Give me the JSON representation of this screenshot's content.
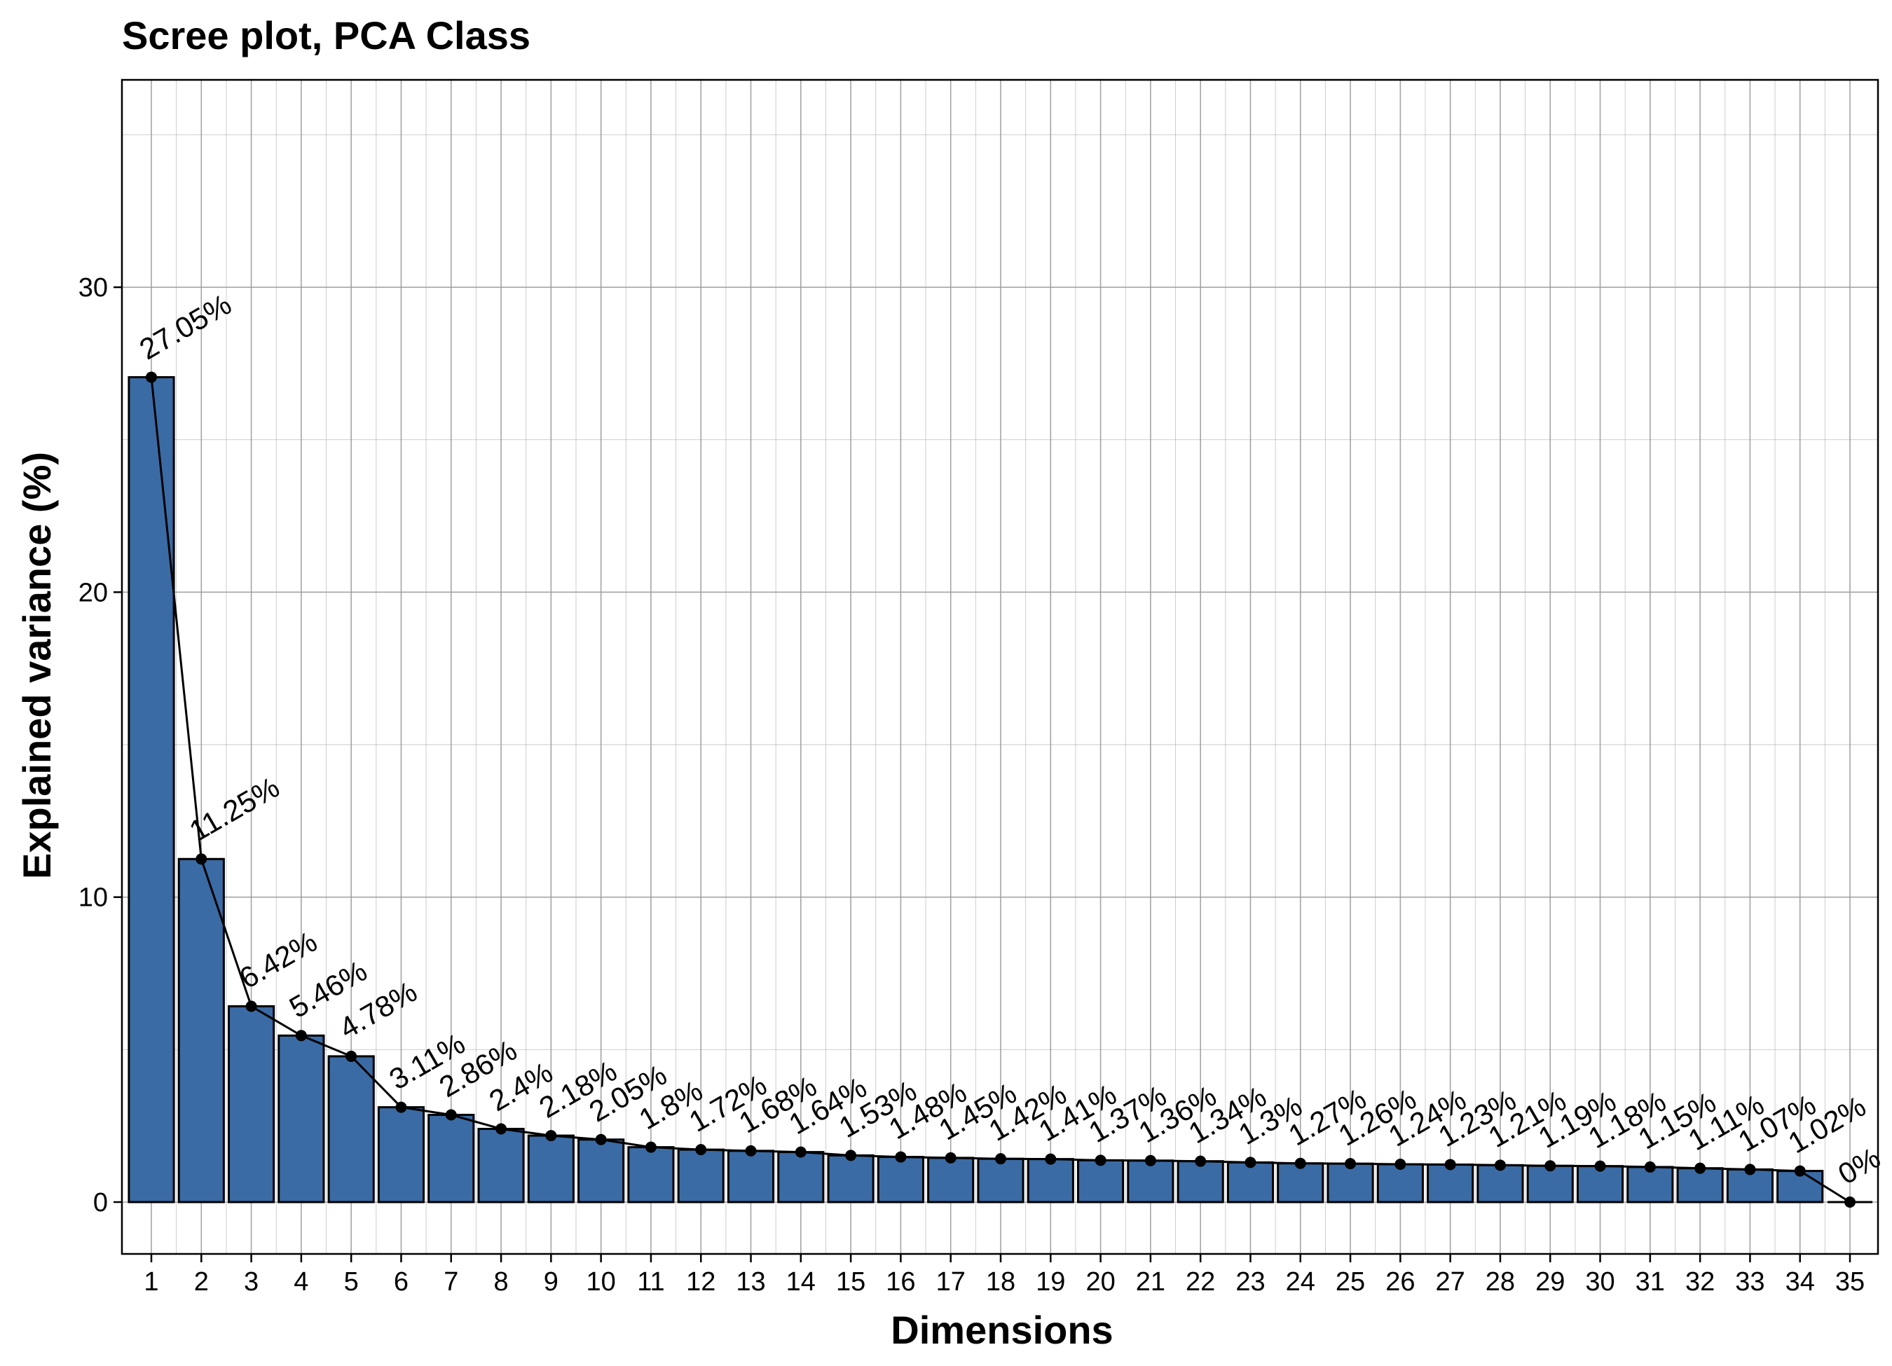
{
  "chart_data": {
    "type": "bar",
    "title": "Scree plot, PCA Class",
    "xlabel": "Dimensions",
    "ylabel": "Explained variance (%)",
    "categories": [
      "1",
      "2",
      "3",
      "4",
      "5",
      "6",
      "7",
      "8",
      "9",
      "10",
      "11",
      "12",
      "13",
      "14",
      "15",
      "16",
      "17",
      "18",
      "19",
      "20",
      "21",
      "22",
      "23",
      "24",
      "25",
      "26",
      "27",
      "28",
      "29",
      "30",
      "31",
      "32",
      "33",
      "34",
      "35"
    ],
    "values": [
      27.05,
      11.25,
      6.42,
      5.46,
      4.78,
      3.11,
      2.86,
      2.4,
      2.18,
      2.05,
      1.8,
      1.72,
      1.68,
      1.64,
      1.53,
      1.48,
      1.45,
      1.42,
      1.41,
      1.37,
      1.36,
      1.34,
      1.3,
      1.27,
      1.26,
      1.24,
      1.23,
      1.21,
      1.19,
      1.18,
      1.15,
      1.11,
      1.07,
      1.02,
      0
    ],
    "labels": [
      "27.05%",
      "11.25%",
      "6.42%",
      "5.46%",
      "4.78%",
      "3.11%",
      "2.86%",
      "2.4%",
      "2.18%",
      "2.05%",
      "1.8%",
      "1.72%",
      "1.68%",
      "1.64%",
      "1.53%",
      "1.48%",
      "1.45%",
      "1.42%",
      "1.41%",
      "1.37%",
      "1.36%",
      "1.34%",
      "1.3%",
      "1.27%",
      "1.26%",
      "1.24%",
      "1.23%",
      "1.21%",
      "1.19%",
      "1.18%",
      "1.15%",
      "1.11%",
      "1.07%",
      "1.02%",
      "0%"
    ],
    "yticks": [
      "0",
      "10",
      "20",
      "30"
    ],
    "ylim": [
      -1.7,
      36.8
    ],
    "grid": true,
    "overlay": "line",
    "colors": {
      "bar_fill": "#3A6BA5",
      "bar_stroke": "#000000",
      "line": "#000000",
      "grid": "#9a9a9a"
    }
  }
}
